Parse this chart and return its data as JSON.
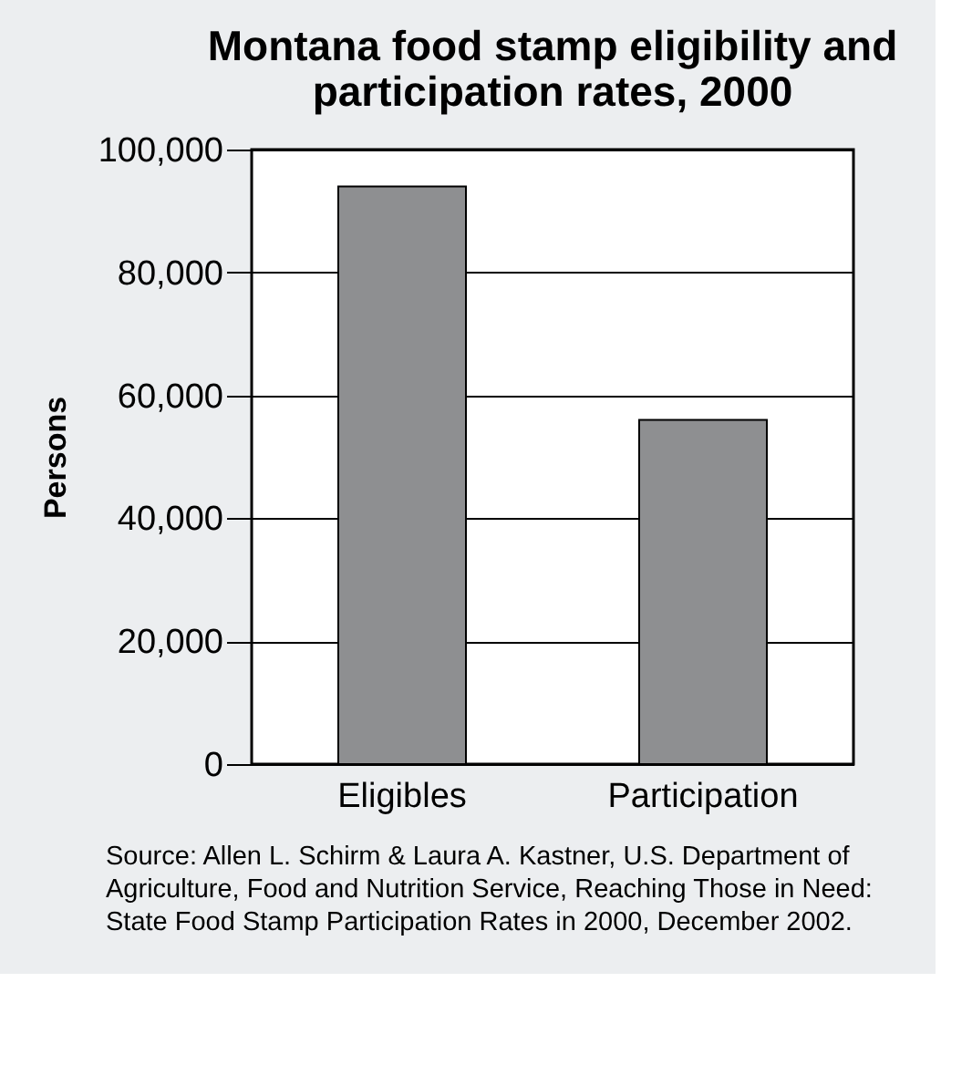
{
  "chart_data": {
    "type": "bar",
    "title": "Montana food stamp eligibility and participation rates, 2000",
    "categories": [
      "Eligibles",
      "Participation"
    ],
    "values": [
      94000,
      56000
    ],
    "colors": [
      "#8e8f91",
      "#8e8f91"
    ],
    "ylabel": "Persons",
    "ylim": [
      0,
      100000
    ],
    "yticks": [
      0,
      {
        "value": 20000,
        "label": "20,000"
      },
      {
        "value": 40000,
        "label": "40,000"
      },
      {
        "value": 60000,
        "label": "60,000"
      },
      {
        "value": 80000,
        "label": "80,000"
      },
      {
        "value": 100000,
        "label": "100,000"
      }
    ],
    "grid": "y",
    "annotations": [
      "Source:  Allen L. Schirm & Laura A. Kastner, U.S. Department of Agriculture, Food and Nutrition Service, Reaching Those in Need: State Food Stamp Participation Rates in 2000, December 2002."
    ]
  }
}
